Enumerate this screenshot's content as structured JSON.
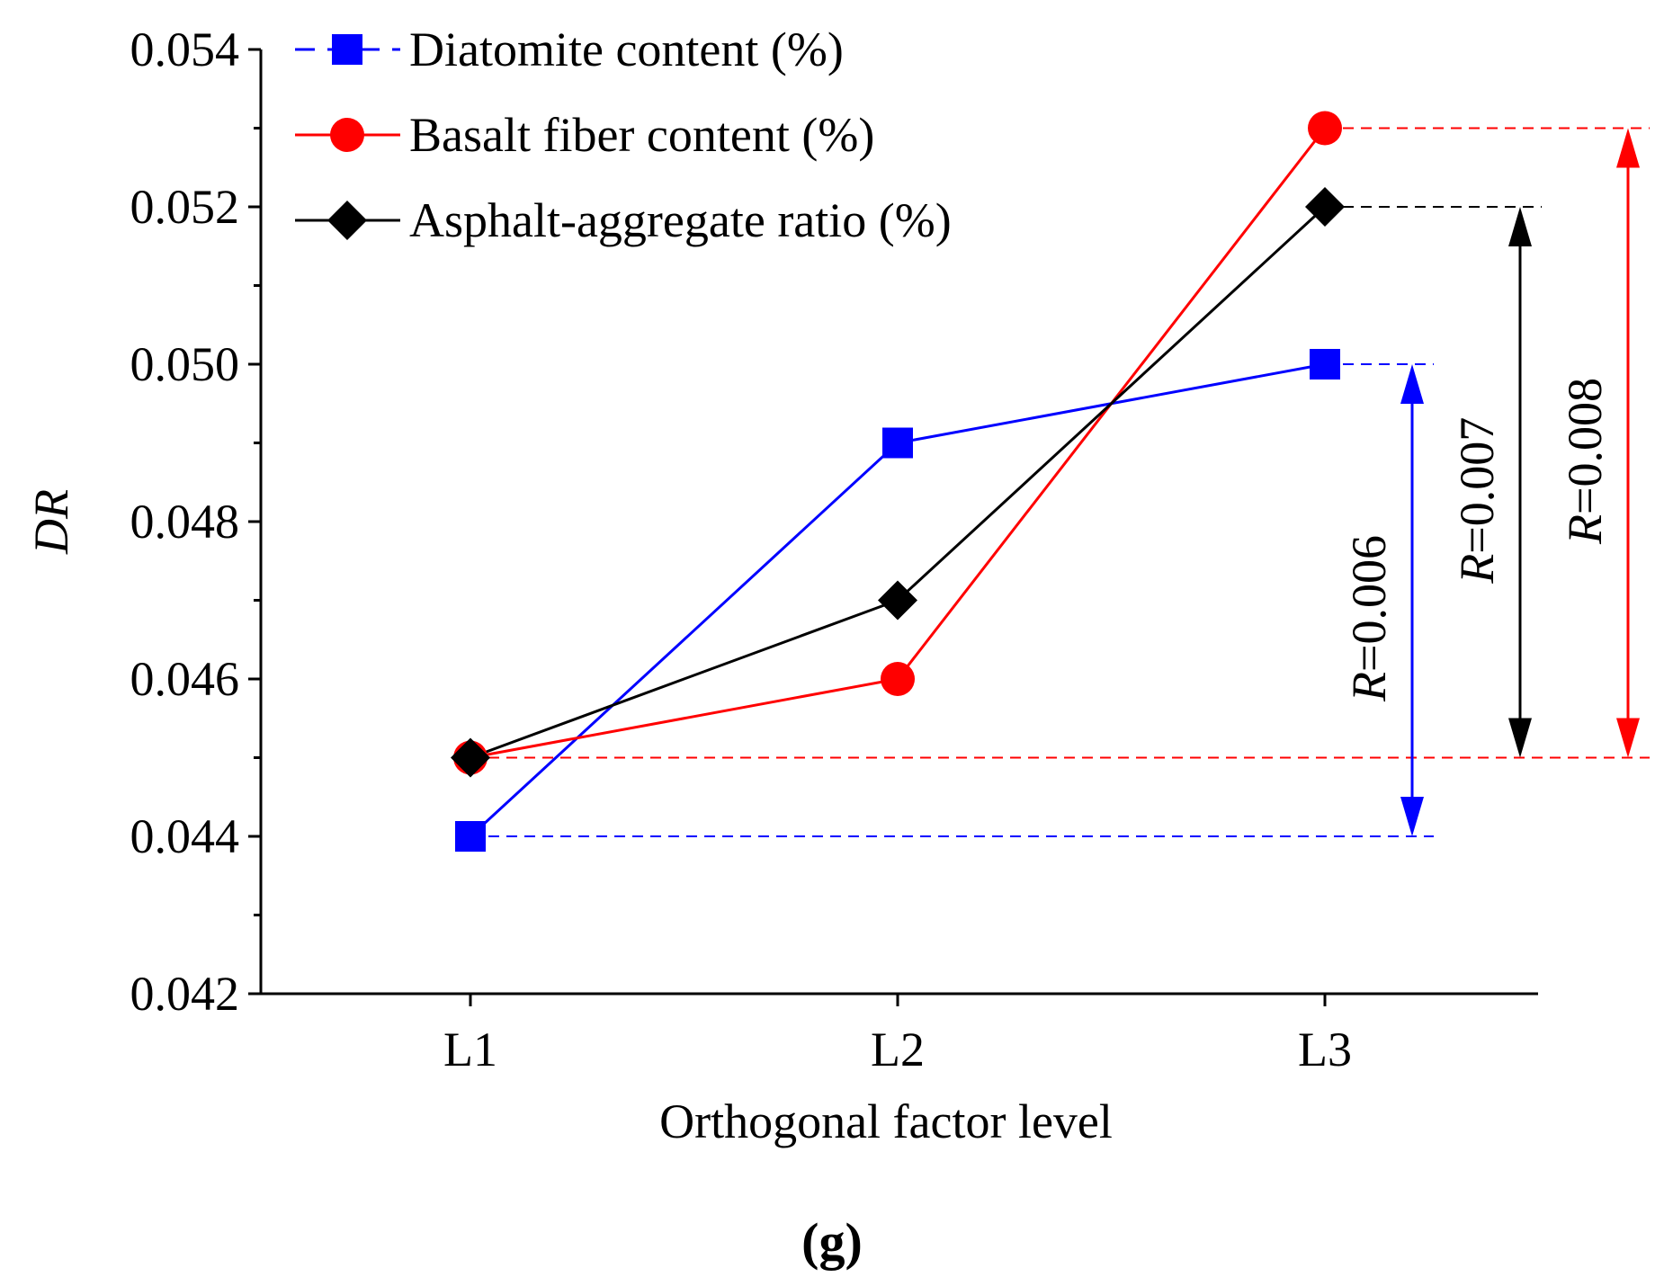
{
  "chart_data": {
    "type": "line",
    "categories": [
      "L1",
      "L2",
      "L3"
    ],
    "xlabel": "Orthogonal factor level",
    "ylabel": "DR",
    "ylim": [
      0.042,
      0.054
    ],
    "yticks": [
      "0.042",
      "0.044",
      "0.046",
      "0.048",
      "0.050",
      "0.052",
      "0.054"
    ],
    "ytick_values": [
      0.042,
      0.044,
      0.046,
      0.048,
      0.05,
      0.052,
      0.054
    ],
    "panel_label": "(g)",
    "legend_position": "top-left",
    "series": [
      {
        "name": "Diatomite content (%)",
        "marker": "square",
        "color": "#0000ff",
        "values": [
          0.044,
          0.049,
          0.05
        ]
      },
      {
        "name": "Basalt fiber content (%)",
        "marker": "circle",
        "color": "#ff0000",
        "values": [
          0.045,
          0.046,
          0.053
        ]
      },
      {
        "name": "Asphalt-aggregate ratio (%)",
        "marker": "diamond",
        "color": "#000000",
        "values": [
          0.045,
          0.047,
          0.052
        ]
      }
    ],
    "ranges": [
      {
        "series": 0,
        "r_italic": "R",
        "r_text": "=0.006",
        "low": 0.044,
        "high": 0.05,
        "color": "#0000ff"
      },
      {
        "series": 2,
        "r_italic": "R",
        "r_text": "=0.007",
        "low": 0.045,
        "high": 0.052,
        "color": "#000000"
      },
      {
        "series": 1,
        "r_italic": "R",
        "r_text": "=0.008",
        "low": 0.045,
        "high": 0.053,
        "color": "#ff0000"
      }
    ]
  }
}
